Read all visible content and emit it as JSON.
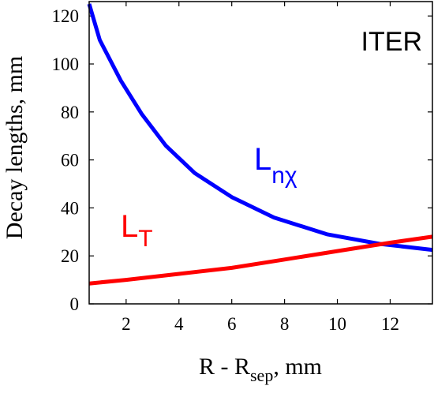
{
  "chart_data": {
    "type": "line",
    "annotation_label": "ITER",
    "xlabel": {
      "main": "R - R",
      "sub": "sep",
      "tail": ",  mm"
    },
    "ylabel": "Decay lengths, mm",
    "xlim": [
      0.6,
      13.6
    ],
    "ylim": [
      0,
      126
    ],
    "xticks": [
      2,
      4,
      6,
      8,
      10,
      12
    ],
    "yticks": [
      0,
      20,
      40,
      60,
      80,
      100,
      120
    ],
    "grid": false,
    "series": [
      {
        "id": "Lnchi",
        "label_main": "L",
        "label_sub": "nχ",
        "color": "#0000ff",
        "x": [
          0.6,
          1.0,
          1.8,
          2.6,
          3.5,
          4.6,
          6.0,
          7.6,
          9.6,
          11.6,
          13.6
        ],
        "y": [
          125,
          110,
          93,
          79,
          66,
          54.5,
          44.5,
          36,
          29,
          25,
          22.5
        ]
      },
      {
        "id": "LT",
        "label_main": "L",
        "label_sub": "T",
        "color": "#ff0000",
        "x": [
          0.6,
          2.0,
          4.0,
          6.0,
          8.0,
          10.0,
          12.0,
          13.6
        ],
        "y": [
          8.5,
          10,
          12.5,
          15,
          18.5,
          22,
          25.5,
          28
        ]
      }
    ]
  }
}
